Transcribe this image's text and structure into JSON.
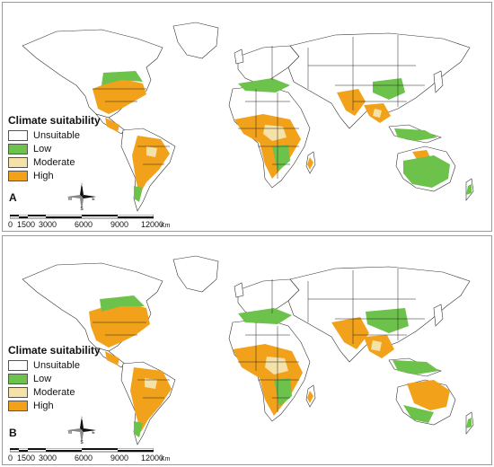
{
  "legend": {
    "title": "Climate suitability",
    "classes": [
      {
        "label": "Unsuitable",
        "color": "#ffffff"
      },
      {
        "label": "Low",
        "color": "#6cc24a"
      },
      {
        "label": "Moderate",
        "color": "#f5e2a8"
      },
      {
        "label": "High",
        "color": "#f2a21a"
      }
    ]
  },
  "compass": {
    "n": "N",
    "s": "S",
    "e": "E",
    "w": "W"
  },
  "scale": {
    "ticks": [
      "0",
      "1500",
      "3000",
      "6000",
      "9000",
      "12000"
    ],
    "unit": "Km"
  },
  "panels": [
    {
      "id": "A",
      "letter": "A"
    },
    {
      "id": "B",
      "letter": "B"
    }
  ]
}
